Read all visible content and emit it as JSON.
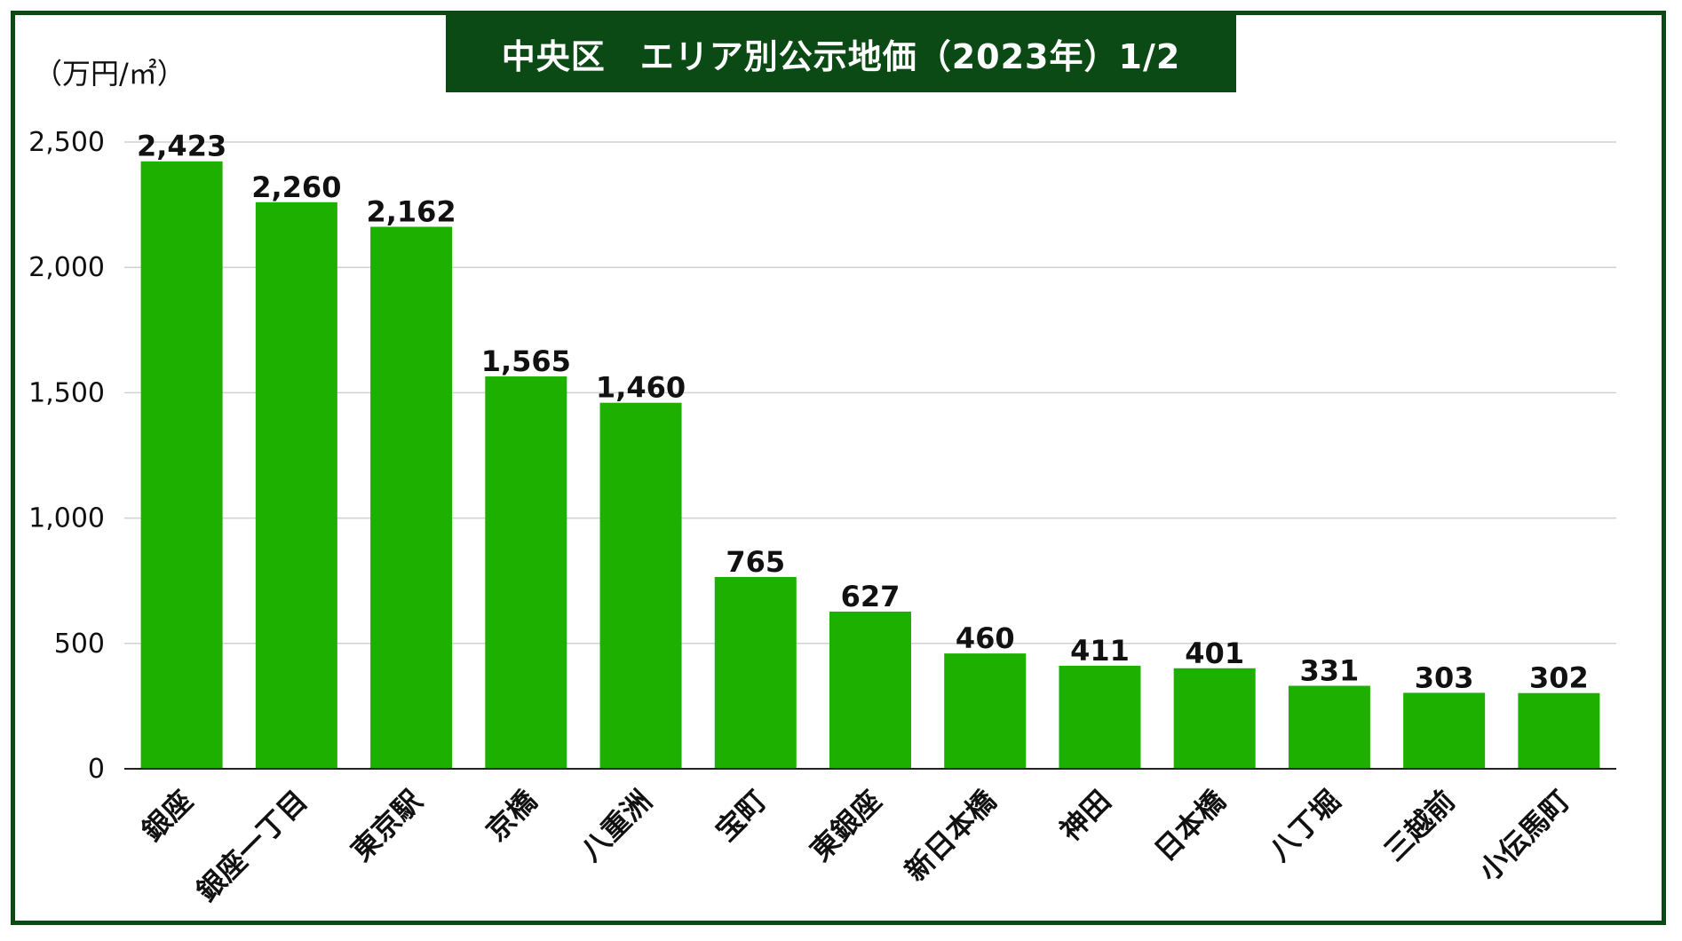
{
  "chart_data": {
    "type": "bar",
    "title": "中央区　エリア別公示地価（2023年）1/2",
    "ylabel": "（万円/㎡）",
    "xlabel": "",
    "ylim": [
      0,
      2500
    ],
    "yticks": [
      0,
      500,
      1000,
      1500,
      2000,
      2500
    ],
    "ytick_labels": [
      "0",
      "500",
      "1,000",
      "1,500",
      "2,000",
      "2,500"
    ],
    "categories": [
      "銀座",
      "銀座一丁目",
      "東京駅",
      "京橋",
      "八重洲",
      "宝町",
      "東銀座",
      "新日本橋",
      "神田",
      "日本橋",
      "八丁堀",
      "三越前",
      "小伝馬町"
    ],
    "values": [
      2423,
      2260,
      2162,
      1565,
      1460,
      765,
      627,
      460,
      411,
      401,
      331,
      303,
      302
    ],
    "value_labels": [
      "2,423",
      "2,260",
      "2,162",
      "1,565",
      "1,460",
      "765",
      "627",
      "460",
      "411",
      "401",
      "331",
      "303",
      "302"
    ],
    "grid": true,
    "legend": "none"
  },
  "colors": {
    "bar": "#1db000",
    "frame": "#0b4a14",
    "grid": "#d0d0d0",
    "axis": "#222222"
  }
}
